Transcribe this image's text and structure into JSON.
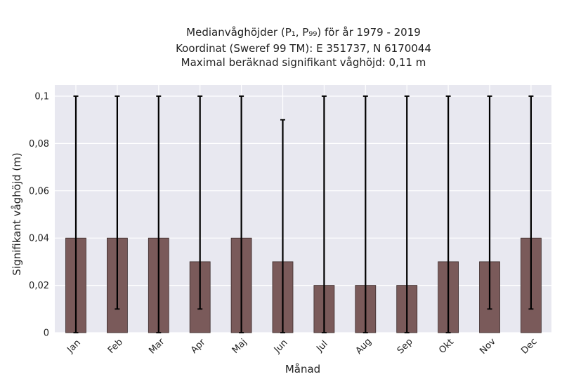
{
  "chart_data": {
    "type": "bar",
    "title_lines": [
      "Medianvåghöjder (P₁, P₉₉) för år 1979 - 2019",
      "Koordinat (Sweref 99 TM): E 351737, N 6170044",
      "Maximal beräknad signifikant våghöjd: 0,11 m"
    ],
    "xlabel": "Månad",
    "ylabel": "Signifikant våghöjd (m)",
    "categories": [
      "Jan",
      "Feb",
      "Mar",
      "Apr",
      "Maj",
      "Jun",
      "Jul",
      "Aug",
      "Sep",
      "Okt",
      "Nov",
      "Dec"
    ],
    "values": [
      0.04,
      0.04,
      0.04,
      0.03,
      0.04,
      0.03,
      0.02,
      0.02,
      0.02,
      0.03,
      0.03,
      0.04
    ],
    "error_low": [
      0,
      0.01,
      0,
      0.01,
      0,
      0,
      0,
      0,
      0,
      0,
      0.01,
      0.01
    ],
    "error_high": [
      0.1,
      0.1,
      0.1,
      0.1,
      0.1,
      0.09,
      0.1,
      0.1,
      0.1,
      0.1,
      0.1,
      0.1
    ],
    "ylim": [
      0,
      0.1
    ],
    "yticks": [
      0,
      0.02,
      0.04,
      0.06,
      0.08,
      0.1
    ],
    "ytick_labels": [
      "0",
      "0,02",
      "0,04",
      "0,06",
      "0,08",
      "0,1"
    ],
    "grid": true,
    "colors": {
      "bar": "#7a5a5a",
      "bar_edge": "#3a2a2a",
      "error_bar": "#000000",
      "plot_background": "#e8e8f0",
      "grid": "#ffffff"
    }
  }
}
